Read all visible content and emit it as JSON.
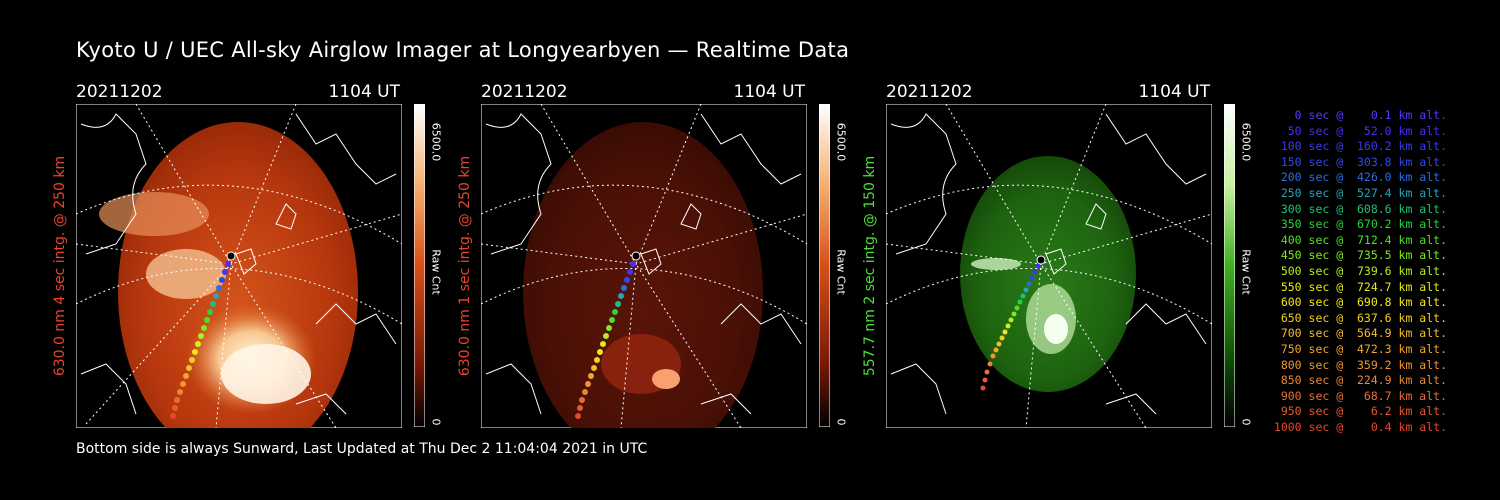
{
  "title": "Kyoto U / UEC All-sky Airglow Imager at Longyearbyen — Realtime Data",
  "footer": "Bottom side is always Sunward, Last Updated at Thu Dec  2 11:04:04 2021 in UTC",
  "colors": {
    "red_label": "#e8462a",
    "green_label": "#4be039"
  },
  "panels": [
    {
      "date": "20211202",
      "ut": "1104 UT",
      "side_label": "630.0 nm 4 sec intg. @ 250 km",
      "cbar_max": "6500.0",
      "cbar_unit": "Raw Cnt",
      "cbar_min": "0"
    },
    {
      "date": "20211202",
      "ut": "1104 UT",
      "side_label": "630.0 nm 1 sec intg. @ 250 km",
      "cbar_max": "6500.0",
      "cbar_unit": "Raw Cnt",
      "cbar_min": "0"
    },
    {
      "date": "20211202",
      "ut": "1104 UT",
      "side_label": "557.7 nm 2 sec intg. @ 150 km",
      "cbar_max": "6500.0",
      "cbar_unit": "Raw Cnt",
      "cbar_min": "0"
    }
  ],
  "legend": [
    {
      "text": "   0 sec @    0.1 km alt.",
      "color": "#5a35ff"
    },
    {
      "text": "  50 sec @   52.0 km alt.",
      "color": "#4a2ef8"
    },
    {
      "text": " 100 sec @  160.2 km alt.",
      "color": "#3a3af0"
    },
    {
      "text": " 150 sec @  303.8 km alt.",
      "color": "#2e48ee"
    },
    {
      "text": " 200 sec @  426.0 km alt.",
      "color": "#2a6ee0"
    },
    {
      "text": " 250 sec @  527.4 km alt.",
      "color": "#2aa2b8"
    },
    {
      "text": " 300 sec @  608.6 km alt.",
      "color": "#1fc07a"
    },
    {
      "text": " 350 sec @  670.2 km alt.",
      "color": "#27d43c"
    },
    {
      "text": " 400 sec @  712.4 km alt.",
      "color": "#4ee024"
    },
    {
      "text": " 450 sec @  735.5 km alt.",
      "color": "#7ee822"
    },
    {
      "text": " 500 sec @  739.6 km alt.",
      "color": "#b2ee22"
    },
    {
      "text": " 550 sec @  724.7 km alt.",
      "color": "#dcee1c"
    },
    {
      "text": " 600 sec @  690.8 km alt.",
      "color": "#f5e818"
    },
    {
      "text": " 650 sec @  637.6 km alt.",
      "color": "#f5cf20"
    },
    {
      "text": " 700 sec @  564.9 km alt.",
      "color": "#f5bd2a"
    },
    {
      "text": " 750 sec @  472.3 km alt.",
      "color": "#f2a62a"
    },
    {
      "text": " 800 sec @  359.2 km alt.",
      "color": "#ef9630"
    },
    {
      "text": " 850 sec @  224.9 km alt.",
      "color": "#ec8632"
    },
    {
      "text": " 900 sec @   68.7 km alt.",
      "color": "#ea6e30"
    },
    {
      "text": " 950 sec @    6.2 km alt.",
      "color": "#e85a2c"
    },
    {
      "text": "1000 sec @    0.4 km alt.",
      "color": "#e6482a"
    }
  ]
}
